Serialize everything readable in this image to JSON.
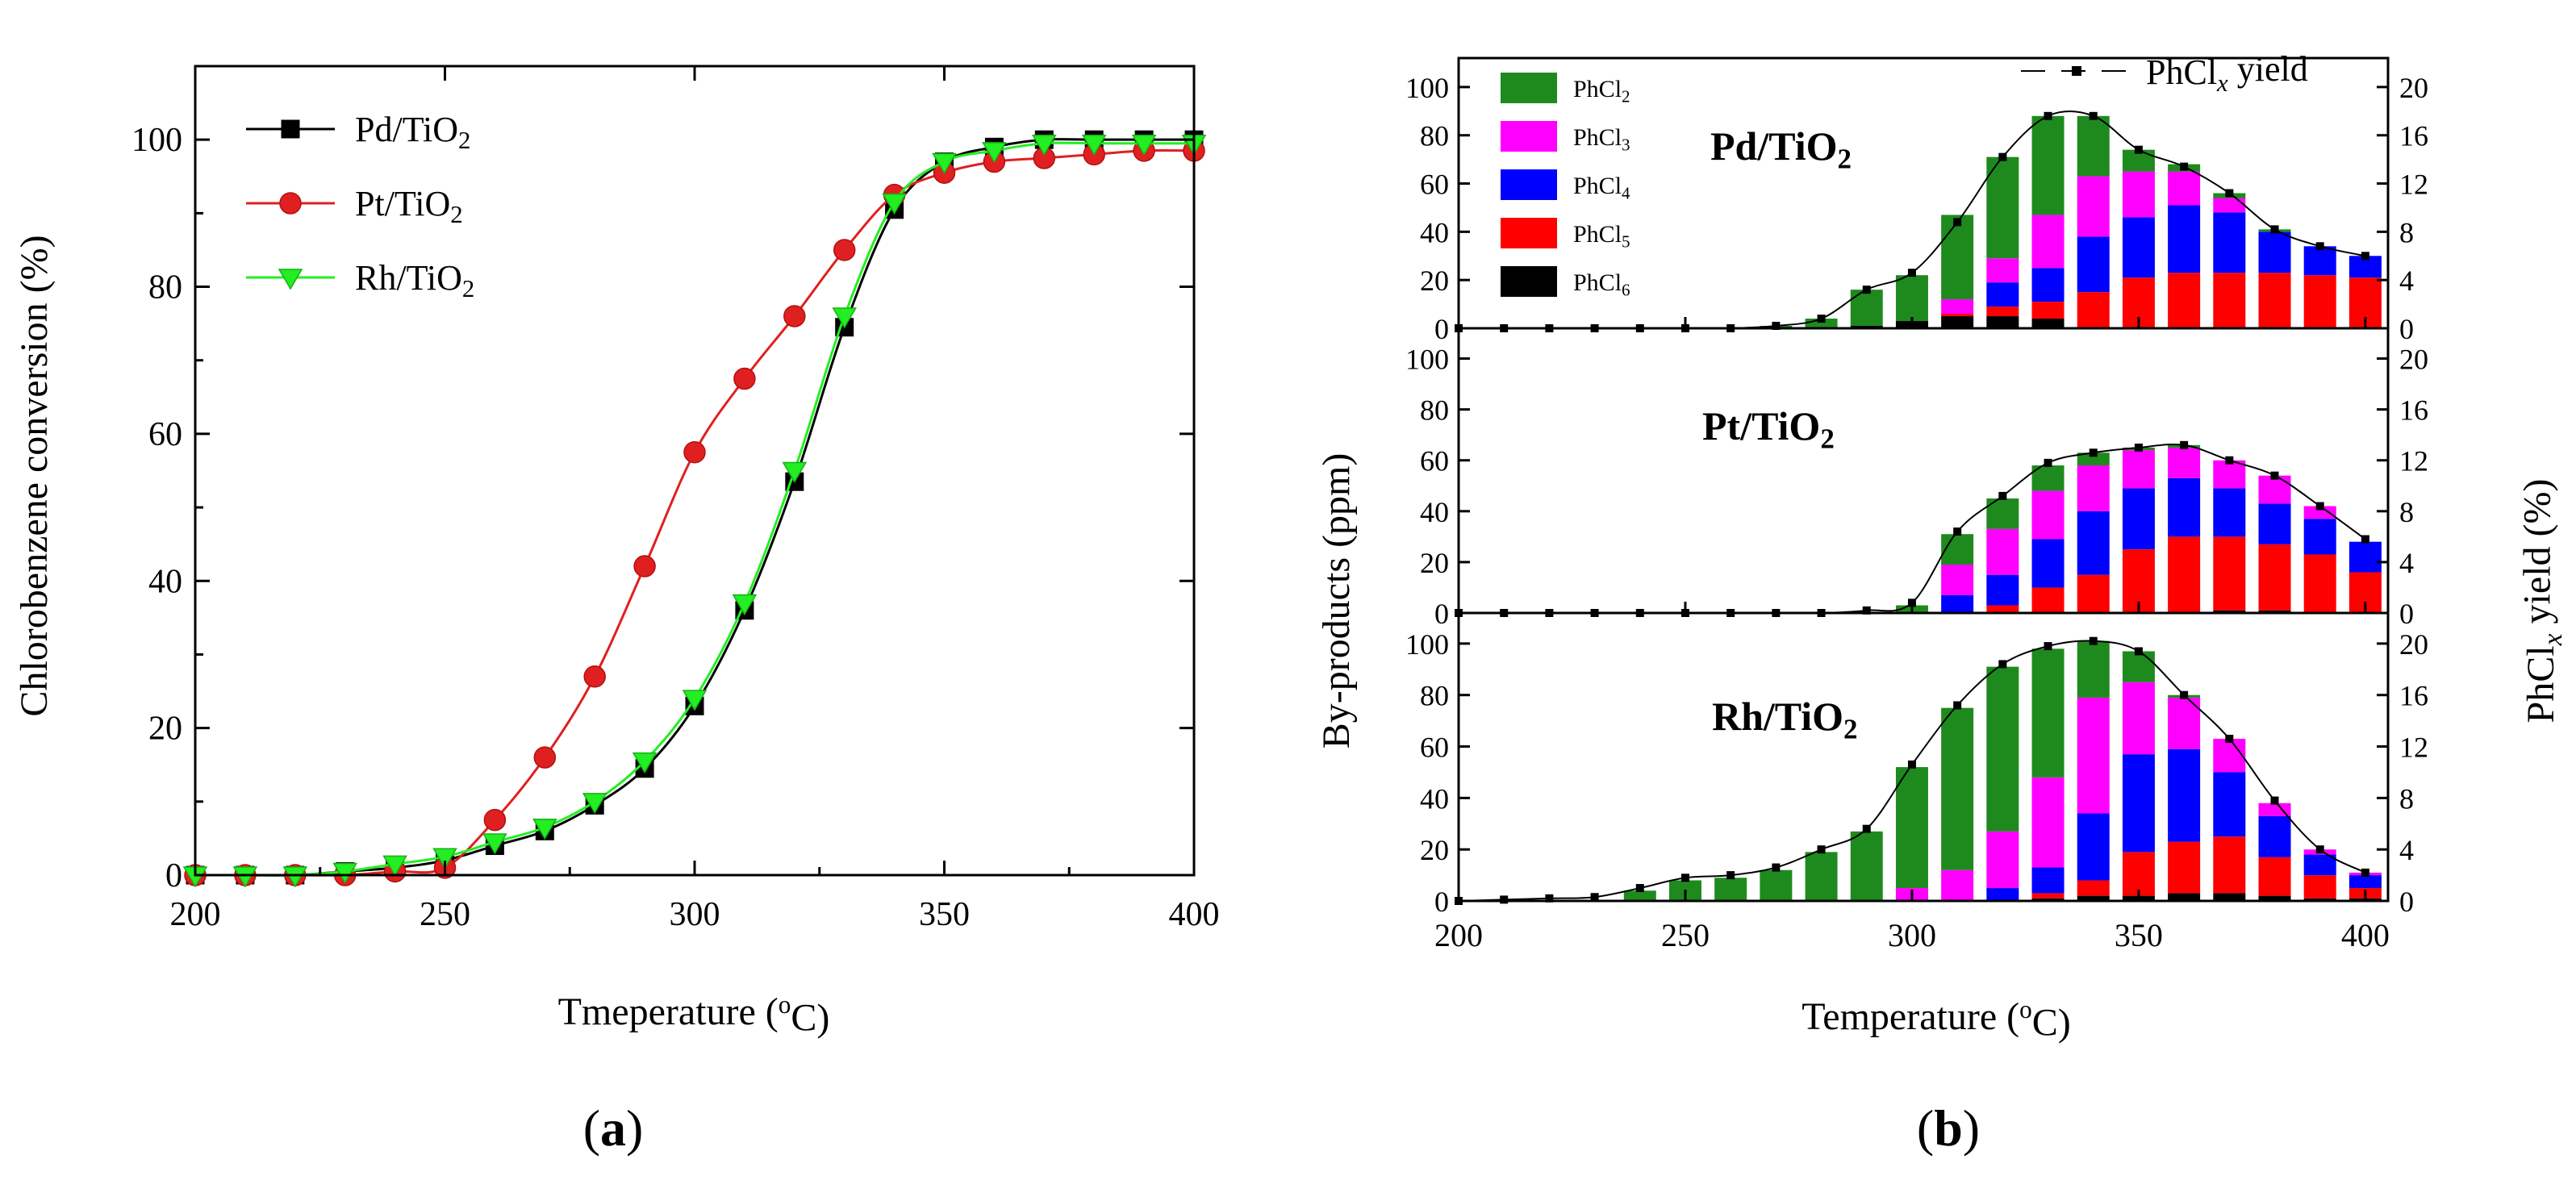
{
  "panels": {
    "a_label": "(a)",
    "b_label": "(b)"
  },
  "chart_data": [
    {
      "type": "line",
      "panel": "a",
      "title": "",
      "xlabel": "Tmeperature (oC)",
      "ylabel": "Chlorobenzene conversion (%)",
      "xlim": [
        200,
        400
      ],
      "ylim": [
        0,
        110
      ],
      "xticks": [
        200,
        250,
        300,
        350,
        400
      ],
      "yticks": [
        0,
        20,
        40,
        60,
        80,
        100
      ],
      "legend_position": "top-left",
      "x": [
        200,
        210,
        220,
        230,
        240,
        250,
        260,
        270,
        280,
        290,
        300,
        310,
        320,
        330,
        340,
        350,
        360,
        370,
        380,
        390,
        400
      ],
      "series": [
        {
          "name": "Pd/TiO2",
          "label_main": "Pd/TiO",
          "label_sub": "2",
          "color": "#000000",
          "marker": "square",
          "values": [
            0,
            0,
            0,
            0.5,
            1,
            2,
            4,
            6,
            9.5,
            14.5,
            23,
            36,
            53.5,
            74.5,
            90.5,
            97,
            99,
            100,
            100,
            100,
            100
          ]
        },
        {
          "name": "Pt/TiO2",
          "label_main": "Pt/TiO",
          "label_sub": "2",
          "color": "#e02020",
          "marker": "circle",
          "values": [
            0,
            0,
            0,
            0,
            0.5,
            1,
            7.5,
            16,
            27,
            42,
            57.5,
            67.5,
            76,
            85,
            92.5,
            95.5,
            97,
            97.5,
            98,
            98.5,
            98.5
          ]
        },
        {
          "name": "Rh/TiO2",
          "label_main": "Rh/TiO",
          "label_sub": "2",
          "color": "#22ee22",
          "marker": "triangle-down",
          "values": [
            0,
            0,
            0,
            0.5,
            1.5,
            2.5,
            4.5,
            6.5,
            10,
            15.5,
            24,
            37,
            55,
            76,
            91.5,
            97,
            98.5,
            99.5,
            99.5,
            99.5,
            99.5
          ]
        }
      ]
    },
    {
      "type": "stacked-bar-with-line",
      "panel": "b",
      "xlabel": "Temperature (oC)",
      "ylabel": "By-products (ppm)",
      "ylabel_right_main": "PhCl",
      "ylabel_right_sub": "x",
      "ylabel_right_tail": " yield (%)",
      "xlim": [
        200,
        405
      ],
      "xticks": [
        200,
        250,
        300,
        350,
        400
      ],
      "ylim": [
        0,
        110
      ],
      "yticks": [
        0,
        20,
        40,
        60,
        80,
        100
      ],
      "ylim_right": [
        0,
        22
      ],
      "yticks_right": [
        0,
        4,
        8,
        12,
        16,
        20
      ],
      "x": [
        200,
        210,
        220,
        230,
        240,
        250,
        260,
        270,
        280,
        290,
        300,
        310,
        320,
        330,
        340,
        350,
        360,
        370,
        380,
        390,
        400
      ],
      "stack_order": [
        "PhCl6",
        "PhCl5",
        "PhCl4",
        "PhCl3",
        "PhCl2"
      ],
      "components": [
        {
          "name": "PhCl2",
          "label_main": "PhCl",
          "label_sub": "2",
          "color": "#1e8a1e"
        },
        {
          "name": "PhCl3",
          "label_main": "PhCl",
          "label_sub": "3",
          "color": "#ff00ff"
        },
        {
          "name": "PhCl4",
          "label_main": "PhCl",
          "label_sub": "4",
          "color": "#0000ff"
        },
        {
          "name": "PhCl5",
          "label_main": "PhCl",
          "label_sub": "5",
          "color": "#ff0000"
        },
        {
          "name": "PhCl6",
          "label_main": "PhCl",
          "label_sub": "6",
          "color": "#000000"
        }
      ],
      "line_series": {
        "name": "PhClx yield",
        "label_main": "PhCl",
        "label_sub": "x",
        "label_tail": " yield",
        "legend_position": "top-right"
      },
      "subplots": [
        {
          "catalyst_main": "Pd/TiO",
          "catalyst_sub": "2",
          "PhCl2": [
            0,
            0,
            0,
            0,
            0,
            0,
            0,
            1,
            4,
            15,
            19,
            35,
            42,
            41,
            25,
            9,
            3,
            2,
            1,
            0,
            0
          ],
          "PhCl3": [
            0,
            0,
            0,
            0,
            0,
            0,
            0,
            0,
            0,
            0,
            0,
            6,
            10,
            22,
            25,
            19,
            14,
            6,
            0,
            0,
            0
          ],
          "PhCl4": [
            0,
            0,
            0,
            0,
            0,
            0,
            0,
            0,
            0,
            0,
            0,
            0,
            10,
            14,
            23,
            25,
            28,
            25,
            17,
            12,
            9
          ],
          "PhCl5": [
            0,
            0,
            0,
            0,
            0,
            0,
            0,
            0,
            0,
            0,
            0,
            1,
            4,
            7,
            15,
            21,
            23,
            23,
            23,
            22,
            21
          ],
          "PhCl6": [
            0,
            0,
            0,
            0,
            0,
            0,
            0,
            0,
            0,
            1,
            3,
            5,
            5,
            4,
            0,
            0,
            0,
            0,
            0,
            0,
            0
          ],
          "yield": [
            0,
            0,
            0,
            0,
            0,
            0,
            0,
            0.2,
            0.8,
            3.2,
            4.6,
            8.8,
            14.2,
            17.6,
            17.6,
            14.8,
            13.4,
            11.2,
            8.2,
            6.8,
            6.0
          ]
        },
        {
          "catalyst_main": "Pt/TiO",
          "catalyst_sub": "2",
          "PhCl2": [
            0,
            0,
            0,
            0,
            0,
            0,
            0,
            0,
            0,
            0,
            3,
            12,
            12,
            10,
            5,
            1,
            1,
            0,
            0,
            0,
            0
          ],
          "PhCl3": [
            0,
            0,
            0,
            0,
            0,
            0,
            0,
            0,
            0,
            0,
            0,
            12,
            18,
            19,
            18,
            15,
            12,
            11,
            11,
            5,
            0
          ],
          "PhCl4": [
            0,
            0,
            0,
            0,
            0,
            0,
            0,
            0,
            0,
            0,
            0,
            7,
            12,
            19,
            25,
            24,
            23,
            19,
            16,
            14,
            12
          ],
          "PhCl5": [
            0,
            0,
            0,
            0,
            0,
            0,
            0,
            0,
            0,
            0,
            0,
            0,
            3,
            10,
            15,
            25,
            30,
            29,
            26,
            23,
            16
          ],
          "PhCl6": [
            0,
            0,
            0,
            0,
            0,
            0,
            0,
            0,
            0,
            0,
            0,
            0,
            0,
            0,
            0,
            0,
            0,
            1,
            1,
            0,
            0
          ],
          "yield": [
            0,
            0,
            0,
            0,
            0,
            0,
            0,
            0,
            0,
            0.2,
            0.8,
            6.4,
            9.2,
            11.8,
            12.6,
            13.0,
            13.2,
            12.0,
            10.8,
            8.4,
            5.8
          ]
        },
        {
          "catalyst_main": "Rh/TiO",
          "catalyst_sub": "2",
          "PhCl2": [
            0,
            0,
            0,
            0,
            4,
            8,
            9,
            12,
            19,
            27,
            47,
            63,
            64,
            50,
            22,
            12,
            1,
            0,
            0,
            0,
            0
          ],
          "PhCl3": [
            0,
            0,
            0,
            0,
            0,
            0,
            0,
            0,
            0,
            0,
            5,
            12,
            22,
            35,
            45,
            28,
            20,
            13,
            5,
            2,
            1
          ],
          "PhCl4": [
            0,
            0,
            0,
            0,
            0,
            0,
            0,
            0,
            0,
            0,
            0,
            0,
            5,
            10,
            26,
            38,
            36,
            25,
            16,
            8,
            5
          ],
          "PhCl5": [
            0,
            0,
            0,
            0,
            0,
            0,
            0,
            0,
            0,
            0,
            0,
            0,
            0,
            2,
            6,
            17,
            20,
            22,
            15,
            9,
            4
          ],
          "PhCl6": [
            0,
            0,
            0,
            0,
            0,
            0,
            0,
            0,
            0,
            0,
            0,
            0,
            0,
            1,
            2,
            2,
            3,
            3,
            2,
            1,
            1
          ],
          "yield": [
            0,
            0.1,
            0.2,
            0.3,
            1.0,
            1.8,
            2.0,
            2.6,
            4.0,
            5.6,
            10.6,
            15.2,
            18.4,
            19.8,
            20.2,
            19.4,
            16.0,
            12.6,
            7.8,
            4.0,
            2.2
          ]
        }
      ]
    }
  ]
}
